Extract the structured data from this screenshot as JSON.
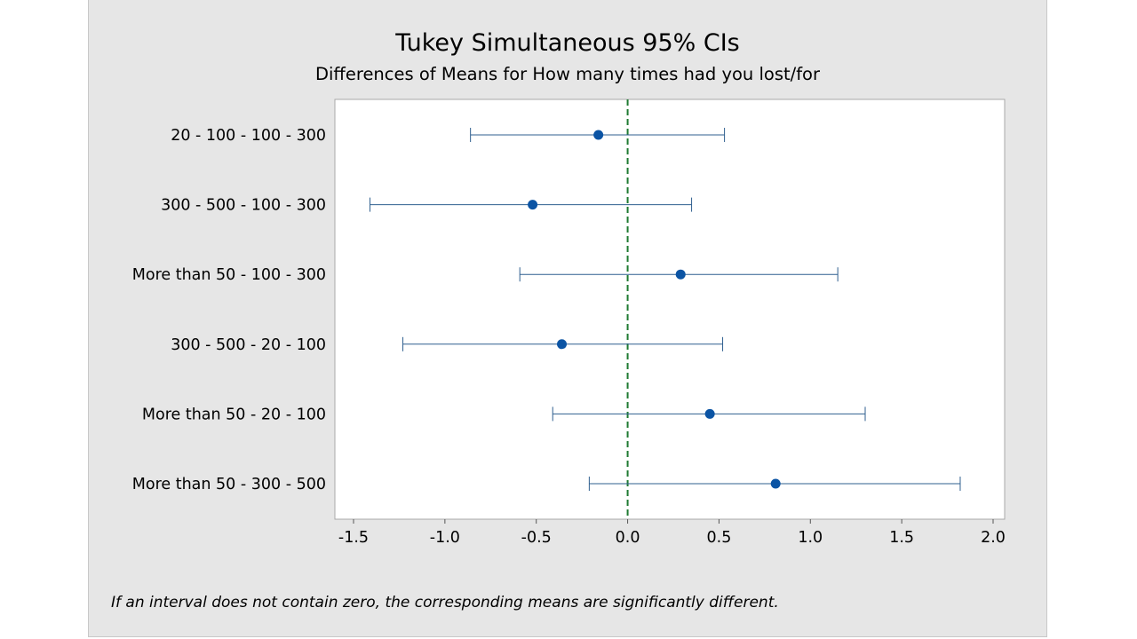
{
  "chart_data": {
    "type": "scatter",
    "title": "Tukey Simultaneous 95% CIs",
    "subtitle": "Differences of Means for How many times had you lost/for",
    "categories": [
      "20 - 100 - 100 - 300",
      "300 - 500 - 100 - 300",
      "More than 50 - 100 - 300",
      "300 - 500 - 20 - 100",
      "More than 50 - 20 - 100",
      "More than 50 - 300 - 500"
    ],
    "series": [
      {
        "estimate": [
          -0.16,
          -0.52,
          0.29,
          -0.36,
          0.45,
          0.81
        ],
        "lower": [
          -0.86,
          -1.41,
          -0.59,
          -1.23,
          -0.41,
          -0.21
        ],
        "upper": [
          0.53,
          0.35,
          1.15,
          0.52,
          1.3,
          1.82
        ]
      }
    ],
    "xlim": [
      -1.65,
      2.05
    ],
    "xticks": [
      -1.5,
      -1.0,
      -0.5,
      0.0,
      0.5,
      1.0,
      1.5,
      2.0
    ],
    "xtick_labels": [
      "-1.5",
      "-1.0",
      "-0.5",
      "0.0",
      "0.5",
      "1.0",
      "1.5",
      "2.0"
    ],
    "reference_line": 0.0,
    "grid": false,
    "legend": "none",
    "footnote": "If an interval does not contain zero, the corresponding means are significantly different.",
    "colors": {
      "marker": "#0b54a4",
      "interval": "#2f5f8f",
      "reference": "#1f7a32",
      "panel": "#e6e6e6",
      "plot_area": "#ffffff"
    }
  }
}
